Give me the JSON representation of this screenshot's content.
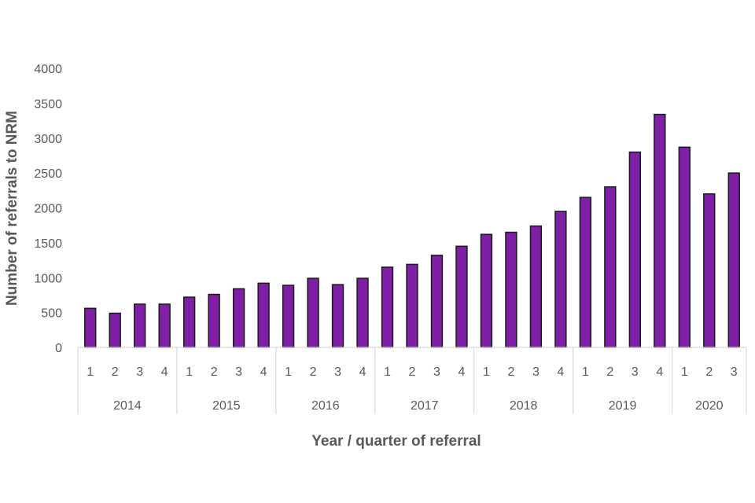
{
  "chart_data": {
    "type": "bar",
    "title": "",
    "xlabel": "Year / quarter of referral",
    "ylabel": "Number of referrals to NRM",
    "ylim": [
      0,
      4000
    ],
    "yticks": [
      "0",
      "500",
      "1000",
      "1500",
      "2000",
      "2500",
      "3000",
      "3500",
      "4000"
    ],
    "grid": false,
    "bar_color": "#7e1fa6",
    "groups": [
      {
        "year": "2014",
        "quarters": [
          "1",
          "2",
          "3",
          "4"
        ],
        "values": [
          560,
          490,
          620,
          620
        ]
      },
      {
        "year": "2015",
        "quarters": [
          "1",
          "2",
          "3",
          "4"
        ],
        "values": [
          720,
          760,
          840,
          920
        ]
      },
      {
        "year": "2016",
        "quarters": [
          "1",
          "2",
          "3",
          "4"
        ],
        "values": [
          890,
          990,
          900,
          990
        ]
      },
      {
        "year": "2017",
        "quarters": [
          "1",
          "2",
          "3",
          "4"
        ],
        "values": [
          1150,
          1190,
          1320,
          1450
        ]
      },
      {
        "year": "2018",
        "quarters": [
          "1",
          "2",
          "3",
          "4"
        ],
        "values": [
          1620,
          1650,
          1740,
          1950
        ]
      },
      {
        "year": "2019",
        "quarters": [
          "1",
          "2",
          "3",
          "4"
        ],
        "values": [
          2150,
          2300,
          2800,
          3340
        ]
      },
      {
        "year": "2020",
        "quarters": [
          "1",
          "2",
          "3"
        ],
        "values": [
          2870,
          2200,
          2500
        ]
      }
    ]
  }
}
